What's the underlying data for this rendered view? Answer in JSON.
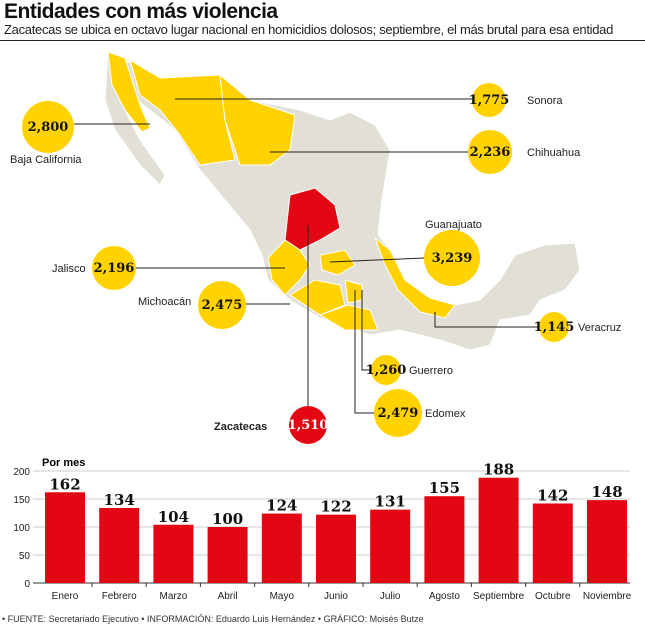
{
  "header": {
    "title": "Entidades con más violencia",
    "subtitle": "Zacatecas se ubica en octavo lugar nacional en homicidios dolosos; septiembre, el más brutal para esa entidad"
  },
  "map": {
    "states": [
      {
        "name": "Baja California",
        "value": "2,800"
      },
      {
        "name": "Sonora",
        "value": "1,775"
      },
      {
        "name": "Chihuahua",
        "value": "2,236"
      },
      {
        "name": "Guanajuato",
        "value": "3,239"
      },
      {
        "name": "Jalisco",
        "value": "2,196"
      },
      {
        "name": "Michoacán",
        "value": "2,475"
      },
      {
        "name": "Veracruz",
        "value": "1,145"
      },
      {
        "name": "Guerrero",
        "value": "1,260"
      },
      {
        "name": "Edomex",
        "value": "2,479"
      },
      {
        "name": "Zacatecas",
        "value": "1,510"
      }
    ],
    "colors": {
      "highlight": "#e30613",
      "top": "#ffd200",
      "other": "#e2e0d6"
    }
  },
  "chart_data": {
    "type": "bar",
    "title": "Por mes",
    "categories": [
      "Enero",
      "Febrero",
      "Marzo",
      "Abril",
      "Mayo",
      "Junio",
      "Julio",
      "Agosto",
      "Septiembre",
      "Octubre",
      "Noviembre"
    ],
    "values": [
      162,
      134,
      104,
      100,
      124,
      122,
      131,
      155,
      188,
      142,
      148
    ],
    "ylim": [
      0,
      200
    ],
    "yticks": [
      "0",
      "50",
      "100",
      "150",
      "200"
    ],
    "color": "#e30613",
    "grid": true
  },
  "footer": "• FUENTE: Secretariado Ejecutivo • INFORMACIÓN: Eduardo Luis Hernández • GRÁFICO: Moisés Butze"
}
